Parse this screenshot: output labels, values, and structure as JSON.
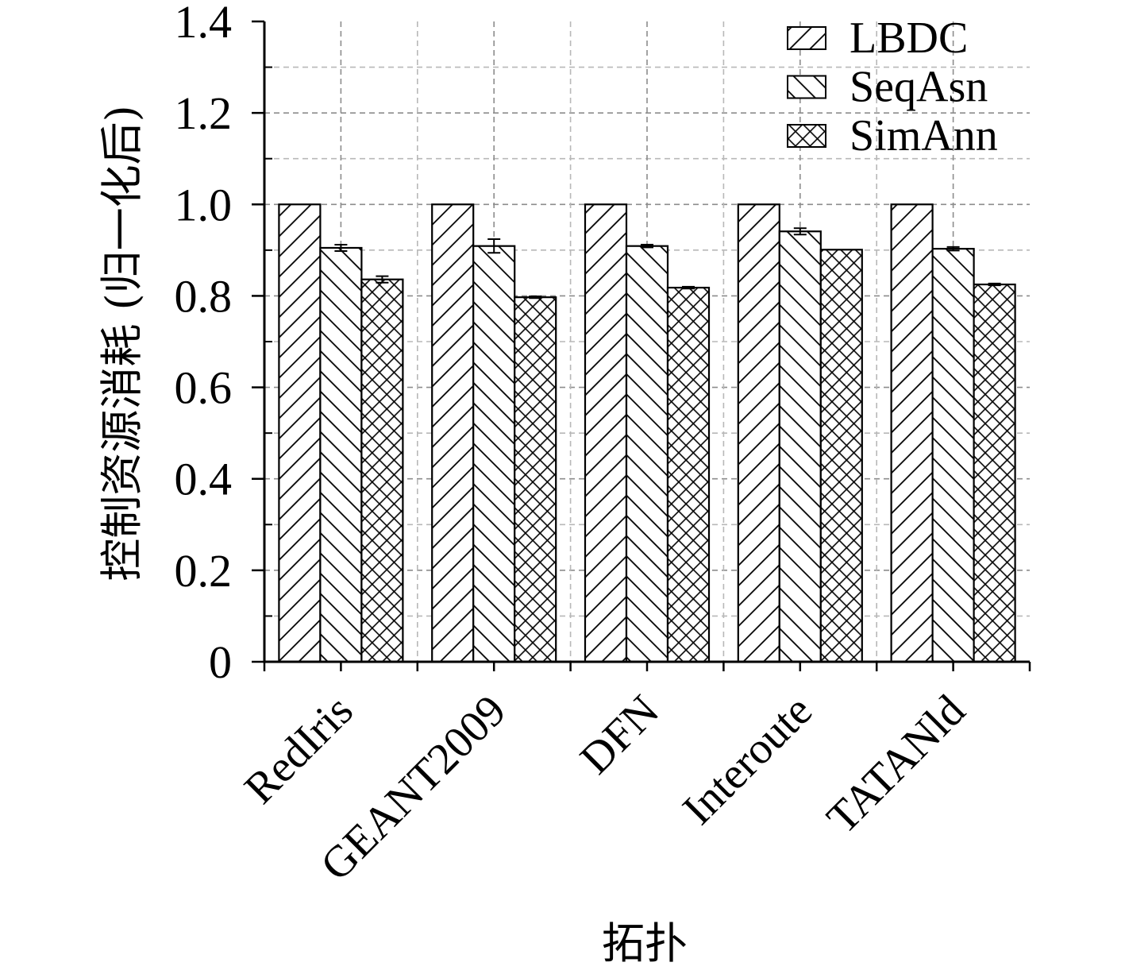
{
  "chart_data": {
    "type": "bar",
    "xlabel": "拓扑",
    "ylabel": "控制资源消耗 (归一化后)",
    "categories": [
      "RedIris",
      "GEANT2009",
      "DFN",
      "Interoute",
      "TATANld"
    ],
    "series": [
      {
        "name": "LBDC",
        "values": [
          1.0,
          1.0,
          1.0,
          1.0,
          1.0
        ]
      },
      {
        "name": "SeqAsn",
        "values": [
          0.905,
          0.909,
          0.909,
          0.941,
          0.903
        ],
        "errors": [
          0.007,
          0.015,
          0.003,
          0.007,
          0.004
        ]
      },
      {
        "name": "SimAnn",
        "values": [
          0.836,
          0.797,
          0.818,
          0.901,
          0.825
        ],
        "errors": [
          0.007,
          0.002,
          0.002,
          0.0,
          0.002
        ]
      }
    ],
    "ylim": [
      0,
      1.4
    ],
    "yticks": [
      0,
      0.2,
      0.4,
      0.6,
      0.8,
      1.0,
      1.2,
      1.4
    ],
    "ytick_labels": [
      "0",
      "0.2",
      "0.4",
      "0.6",
      "0.8",
      "1.0",
      "1.2",
      "1.4"
    ],
    "minor_tick_step": 0.1,
    "grid": true,
    "legend": "top-right",
    "colors": {
      "fill": "#ffffff",
      "stroke": "#000000",
      "grid_major": "#8c8c8c",
      "grid_minor": "#b8b8b8"
    }
  }
}
